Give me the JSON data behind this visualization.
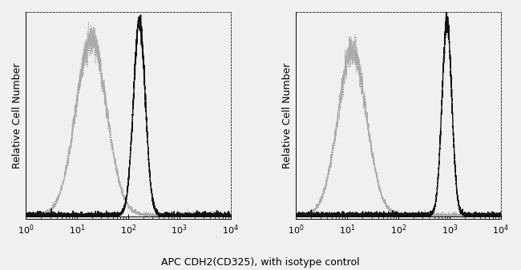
{
  "title": "",
  "xlabel": "APC CDH2(CD325), with isotype control",
  "ylabel": "Relative Cell Number",
  "background_color": "#f0f0f0",
  "panel1": {
    "isotype_peak_log": 1.28,
    "isotype_sigma_log": 0.3,
    "isotype_amplitude": 0.88,
    "antibody_peak_log": 2.22,
    "antibody_sigma_log": 0.115,
    "antibody_amplitude": 0.97
  },
  "panel2": {
    "isotype_peak_log": 1.1,
    "isotype_sigma_log": 0.28,
    "isotype_amplitude": 0.82,
    "antibody_peak_log": 2.95,
    "antibody_sigma_log": 0.095,
    "antibody_amplitude": 0.97
  },
  "isotype_color": "#aaaaaa",
  "antibody_color": "#111111",
  "isotype_linewidth": 0.7,
  "antibody_linewidth": 1.0,
  "tick_label_fontsize": 8,
  "axis_label_fontsize": 9,
  "ylabel_fontsize": 9
}
